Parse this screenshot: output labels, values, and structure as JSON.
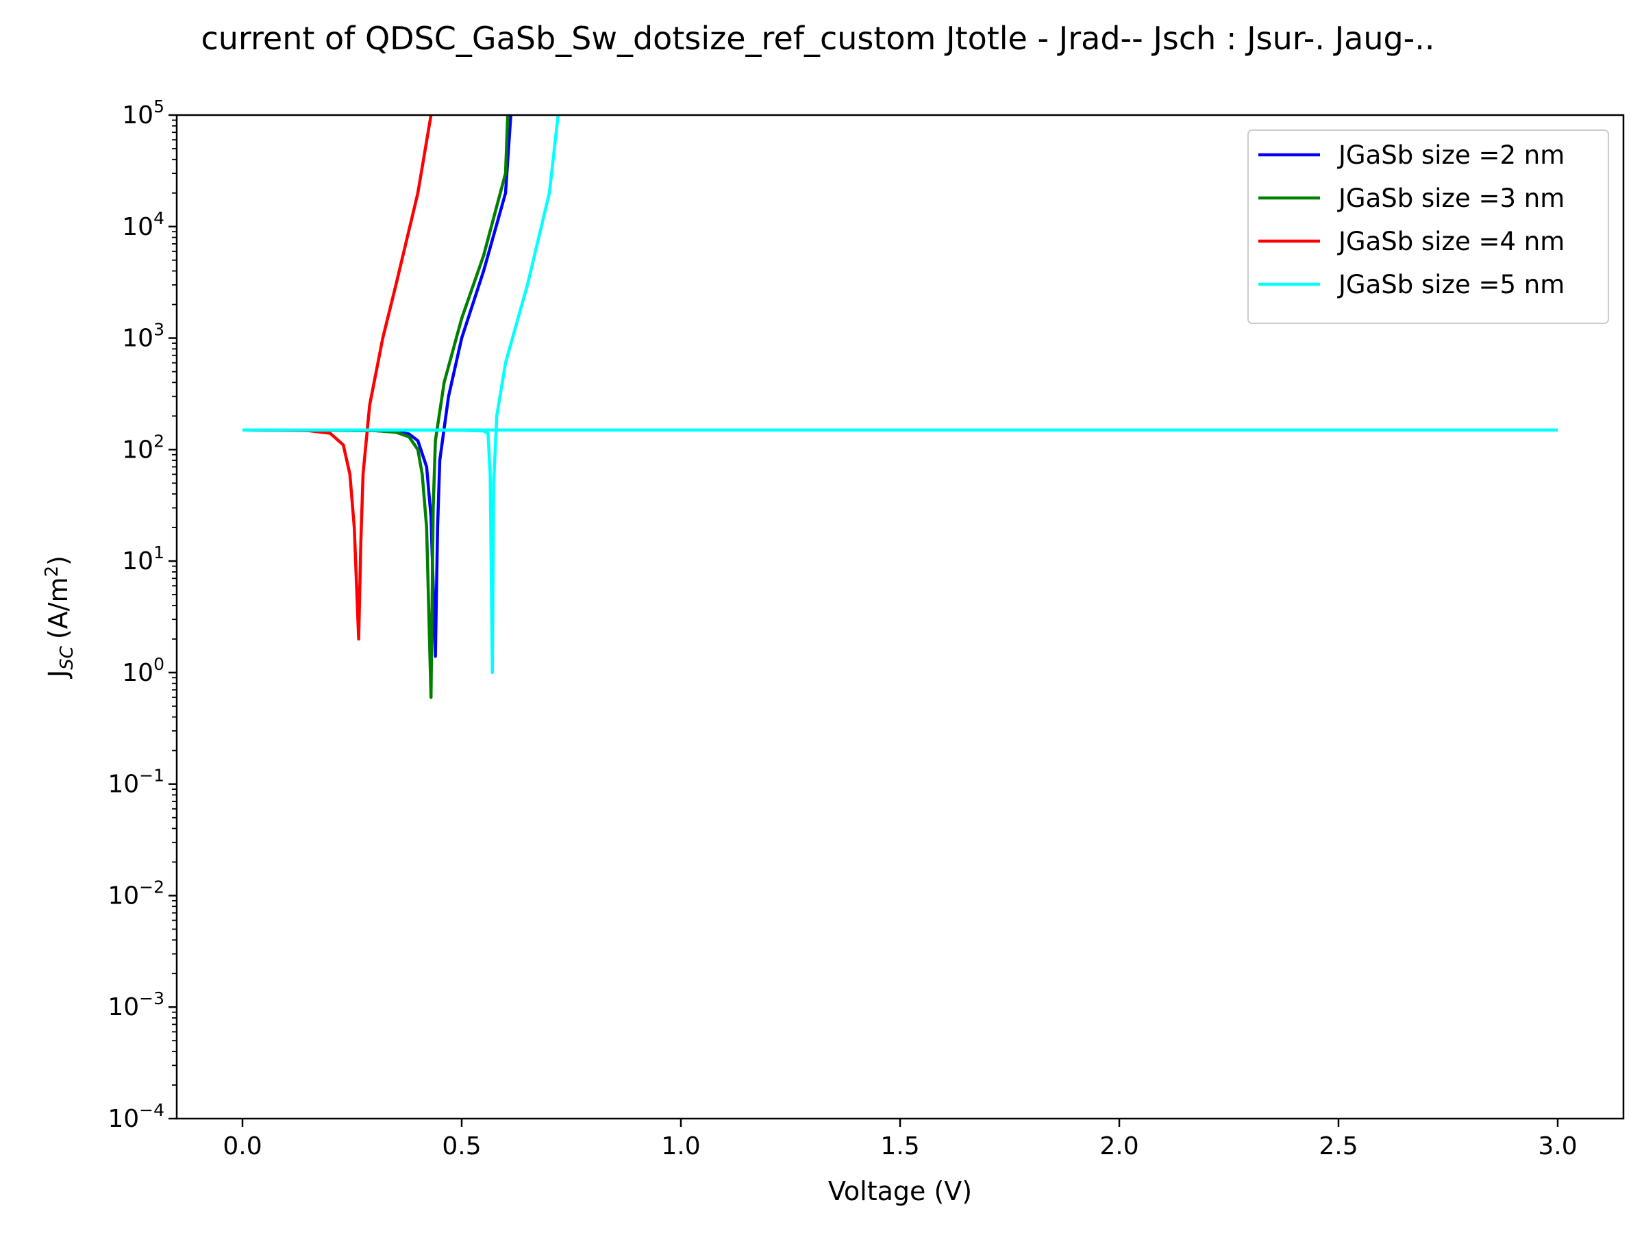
{
  "chart_data": {
    "type": "line",
    "title": "current of QDSC_GaSb_Sw_dotsize_ref_custom Jtotle - Jrad-- Jsch : Jsur-. Jaug-..",
    "xlabel": "Voltage (V)",
    "ylabel_main": "J",
    "ylabel_sub": "SC",
    "ylabel_unit_prefix": "(A/m",
    "ylabel_unit_sup": "2",
    "ylabel_unit_suffix": ")",
    "xlim": [
      -0.15,
      3.15
    ],
    "ylim": [
      0.0001,
      100000
    ],
    "yscale": "log",
    "x_ticks": [
      {
        "value": 0.0,
        "label": "0.0"
      },
      {
        "value": 0.5,
        "label": "0.5"
      },
      {
        "value": 1.0,
        "label": "1.0"
      },
      {
        "value": 1.5,
        "label": "1.5"
      },
      {
        "value": 2.0,
        "label": "2.0"
      },
      {
        "value": 2.5,
        "label": "2.5"
      },
      {
        "value": 3.0,
        "label": "3.0"
      }
    ],
    "y_ticks": [
      {
        "exp": -4,
        "base": "10",
        "sup": "−4"
      },
      {
        "exp": -3,
        "base": "10",
        "sup": "−3"
      },
      {
        "exp": -2,
        "base": "10",
        "sup": "−2"
      },
      {
        "exp": -1,
        "base": "10",
        "sup": "−1"
      },
      {
        "exp": 0,
        "base": "10",
        "sup": "0"
      },
      {
        "exp": 1,
        "base": "10",
        "sup": "1"
      },
      {
        "exp": 2,
        "base": "10",
        "sup": "2"
      },
      {
        "exp": 3,
        "base": "10",
        "sup": "3"
      },
      {
        "exp": 4,
        "base": "10",
        "sup": "4"
      },
      {
        "exp": 5,
        "base": "10",
        "sup": "5"
      }
    ],
    "grid": false,
    "legend_position": "top-right",
    "series": [
      {
        "name": "JGaSb size =2 nm",
        "color": "#0000ff",
        "points": [
          [
            0,
            150
          ],
          [
            0.3,
            148
          ],
          [
            0.35,
            145
          ],
          [
            0.38,
            138
          ],
          [
            0.4,
            120
          ],
          [
            0.42,
            70
          ],
          [
            0.43,
            25
          ],
          [
            0.44,
            1.4
          ],
          [
            0.445,
            20
          ],
          [
            0.45,
            80
          ],
          [
            0.47,
            300
          ],
          [
            0.5,
            1000
          ],
          [
            0.55,
            4000
          ],
          [
            0.6,
            20000
          ],
          [
            0.612,
            100000
          ]
        ]
      },
      {
        "name": "JGaSb size =3 nm",
        "color": "#008000",
        "points": [
          [
            0,
            150
          ],
          [
            0.3,
            148
          ],
          [
            0.35,
            143
          ],
          [
            0.38,
            130
          ],
          [
            0.4,
            100
          ],
          [
            0.41,
            60
          ],
          [
            0.42,
            20
          ],
          [
            0.43,
            0.6
          ],
          [
            0.435,
            30
          ],
          [
            0.44,
            120
          ],
          [
            0.46,
            400
          ],
          [
            0.5,
            1500
          ],
          [
            0.55,
            5500
          ],
          [
            0.6,
            30000
          ],
          [
            0.605,
            100000
          ]
        ]
      },
      {
        "name": "JGaSb size =4 nm",
        "color": "#ff0000",
        "points": [
          [
            0,
            150
          ],
          [
            0.15,
            148
          ],
          [
            0.2,
            140
          ],
          [
            0.23,
            110
          ],
          [
            0.245,
            60
          ],
          [
            0.255,
            20
          ],
          [
            0.265,
            2.0
          ],
          [
            0.27,
            15
          ],
          [
            0.275,
            60
          ],
          [
            0.29,
            250
          ],
          [
            0.32,
            1000
          ],
          [
            0.35,
            3000
          ],
          [
            0.4,
            20000
          ],
          [
            0.43,
            100000
          ]
        ]
      },
      {
        "name": "JGaSb size =5 nm",
        "color": "#00ffff",
        "points": [
          [
            0,
            150
          ],
          [
            0.5,
            149
          ],
          [
            0.55,
            147
          ],
          [
            0.56,
            140
          ],
          [
            0.565,
            60
          ],
          [
            0.57,
            1.0
          ],
          [
            0.573,
            50
          ],
          [
            0.58,
            200
          ],
          [
            0.6,
            600
          ],
          [
            0.65,
            3000
          ],
          [
            0.7,
            20000
          ],
          [
            0.72,
            100000
          ]
        ]
      },
      {
        "name": "",
        "color": "#00ffff",
        "points": [
          [
            0,
            150
          ],
          [
            3.0,
            150
          ]
        ]
      }
    ]
  }
}
